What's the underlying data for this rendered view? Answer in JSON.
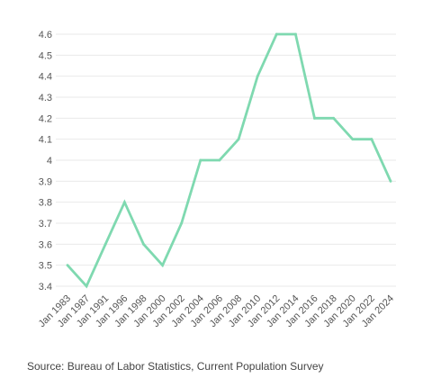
{
  "chart_data": {
    "type": "line",
    "title": "",
    "xlabel": "",
    "ylabel": "",
    "categories": [
      "Jan 1983",
      "Jan 1987",
      "Jan 1991",
      "Jan 1996",
      "Jan 1998",
      "Jan 2000",
      "Jan 2002",
      "Jan 2004",
      "Jan 2006",
      "Jan 2008",
      "Jan 2010",
      "Jan 2012",
      "Jan 2014",
      "Jan 2016",
      "Jan 2018",
      "Jan 2020",
      "Jan 2022",
      "Jan 2024"
    ],
    "series": [
      {
        "values": [
          3.5,
          3.4,
          3.6,
          3.8,
          3.6,
          3.5,
          3.7,
          4.0,
          4.0,
          4.1,
          4.4,
          4.6,
          4.6,
          4.2,
          4.2,
          4.1,
          4.1,
          3.9
        ]
      }
    ],
    "yticks": [
      3.4,
      3.5,
      3.6,
      3.7,
      3.8,
      3.9,
      4,
      4.1,
      4.2,
      4.3,
      4.4,
      4.5,
      4.6
    ],
    "ylim": [
      3.4,
      4.6
    ],
    "grid": true,
    "line_color": "#7fd9b0",
    "grid_color": "#e9e9e9"
  },
  "source": "Source: Bureau of Labor Statistics, Current Population Survey"
}
